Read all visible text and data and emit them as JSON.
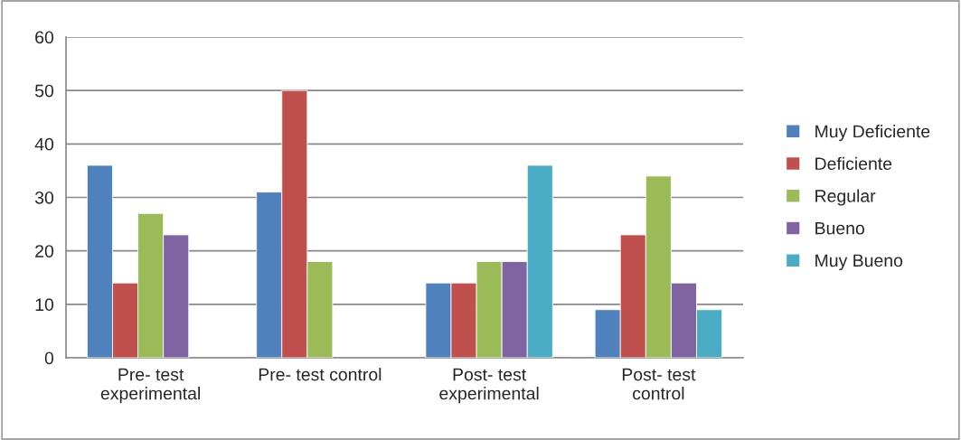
{
  "chart_data": {
    "type": "bar",
    "categories": [
      "Pre- test\nexperimental",
      "Pre- test control",
      "Post- test\nexperimental",
      "Post- test\ncontrol"
    ],
    "series": [
      {
        "name": "Muy Deficiente",
        "color": "#4f81bd",
        "values": [
          36,
          31,
          14,
          9
        ]
      },
      {
        "name": "Deficiente",
        "color": "#c0504d",
        "values": [
          14,
          50,
          14,
          23
        ]
      },
      {
        "name": "Regular",
        "color": "#9bbb59",
        "values": [
          27,
          18,
          18,
          34
        ]
      },
      {
        "name": "Bueno",
        "color": "#8064a2",
        "values": [
          23,
          null,
          18,
          14
        ]
      },
      {
        "name": "Muy Bueno",
        "color": "#4bacc6",
        "values": [
          null,
          null,
          36,
          9
        ]
      }
    ],
    "ylim": [
      0,
      60
    ],
    "yticks": [
      0,
      10,
      20,
      30,
      40,
      50,
      60
    ],
    "grid": "y",
    "legend": "right"
  }
}
